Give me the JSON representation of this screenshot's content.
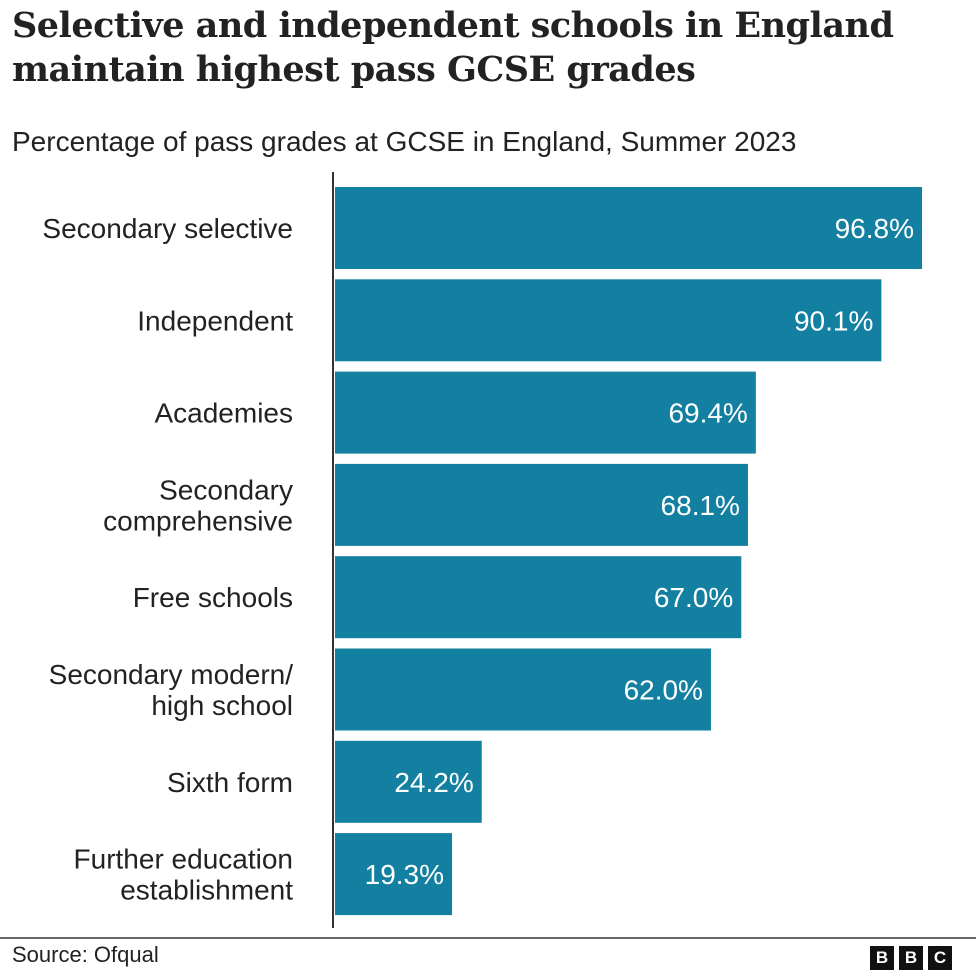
{
  "chart_data": {
    "type": "bar",
    "orientation": "horizontal",
    "title": "Selective and independent schools in England maintain highest pass GCSE grades",
    "subtitle": "Percentage of pass grades at GCSE in England, Summer 2023",
    "categories": [
      [
        "Secondary selective"
      ],
      [
        "Independent"
      ],
      [
        "Academies"
      ],
      [
        "Secondary",
        "comprehensive"
      ],
      [
        "Free schools"
      ],
      [
        "Secondary modern/",
        "high school"
      ],
      [
        "Sixth form"
      ],
      [
        "Further education",
        "establishment"
      ]
    ],
    "values": [
      96.8,
      90.1,
      69.4,
      68.1,
      67.0,
      62.0,
      24.2,
      19.3
    ],
    "value_labels": [
      "96.8%",
      "90.1%",
      "69.4%",
      "68.1%",
      "67.0%",
      "62.0%",
      "24.2%",
      "19.3%"
    ],
    "xlabel": "",
    "ylabel": "",
    "xlim": [
      0,
      100
    ],
    "grid": false,
    "bar_color": "#1380A1"
  },
  "footer": {
    "source": "Source: Ofqual",
    "logo_letters": [
      "B",
      "B",
      "C"
    ]
  }
}
